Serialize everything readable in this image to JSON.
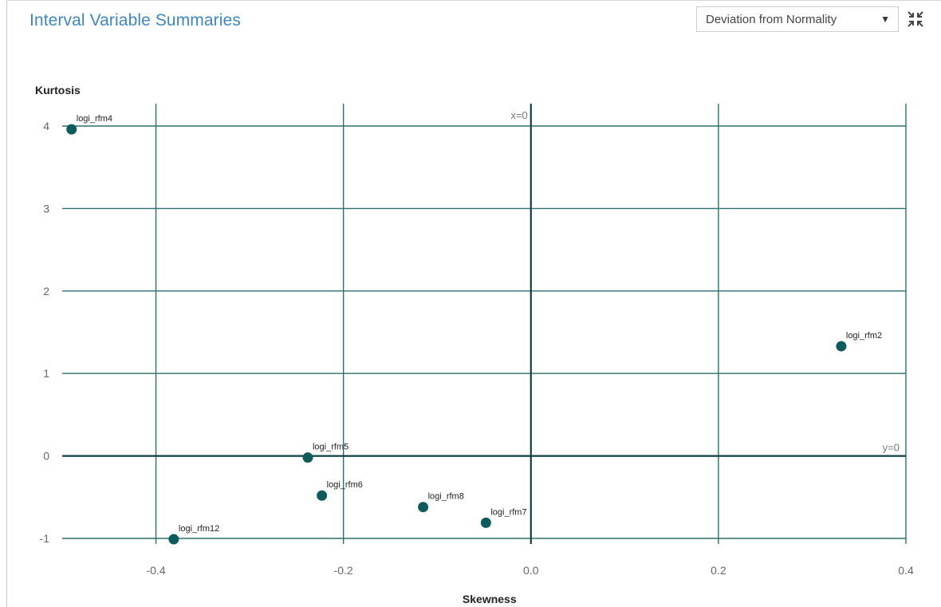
{
  "panel": {
    "title": "Interval Variable Summaries",
    "dropdown_value": "Deviation from Normality",
    "dropdown_caret_icon": "caret-down-icon",
    "maximize_icon": "collapse-arrows-icon"
  },
  "colors": {
    "title": "#3f86c1",
    "grid": "#2e6f73",
    "axis": "#0f3f40",
    "point": "#0e5a5c"
  },
  "chart_data": {
    "type": "scatter",
    "xlabel": "Skewness",
    "ylabel": "Kurtosis",
    "xlim": [
      -0.5,
      0.4
    ],
    "ylim": [
      -1,
      4
    ],
    "x_ticks": [
      -0.4,
      -0.2,
      0.0,
      0.2,
      0.4
    ],
    "x_tick_labels": [
      "-0.4",
      "-0.2",
      "0.0",
      "0.2",
      "0.4"
    ],
    "y_ticks": [
      4,
      3,
      2,
      1,
      0,
      -1
    ],
    "y_tick_labels": [
      "4",
      "3",
      "2",
      "1",
      "0",
      "-1"
    ],
    "grid": true,
    "reference_lines": [
      {
        "axis": "x",
        "value": 0,
        "label": "x=0"
      },
      {
        "axis": "y",
        "value": 0,
        "label": "y=0"
      }
    ],
    "points": [
      {
        "label": "logi_rfm4",
        "x": -0.49,
        "y": 3.96
      },
      {
        "label": "logi_rfm2",
        "x": 0.331,
        "y": 1.33
      },
      {
        "label": "logi_rfm5",
        "x": -0.238,
        "y": -0.02
      },
      {
        "label": "logi_rfm6",
        "x": -0.223,
        "y": -0.48
      },
      {
        "label": "logi_rfm8",
        "x": -0.115,
        "y": -0.62
      },
      {
        "label": "logi_rfm7",
        "x": -0.048,
        "y": -0.81
      },
      {
        "label": "logi_rfm12",
        "x": -0.381,
        "y": -1.01
      }
    ]
  }
}
